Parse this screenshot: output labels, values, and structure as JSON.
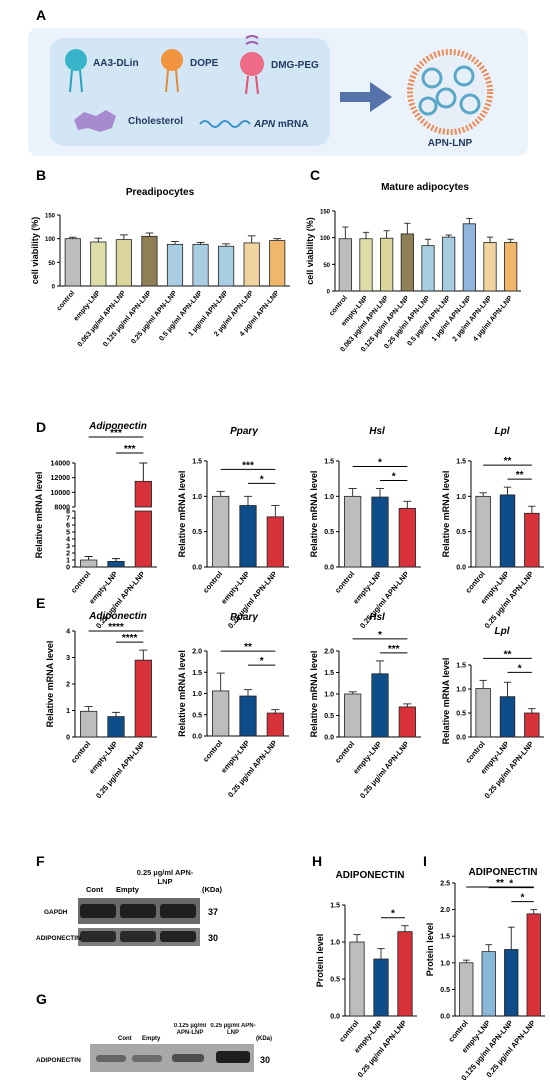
{
  "panel_letters": {
    "A": "A",
    "B": "B",
    "C": "C",
    "D": "D",
    "E": "E",
    "F": "F",
    "G": "G",
    "H": "H",
    "I": "I"
  },
  "schematic": {
    "lipids": [
      "AA3-DLin",
      "DOPE",
      "DMG-PEG",
      "Cholesterol"
    ],
    "mrna_italic": "APN",
    "mrna_rest": " mRNA",
    "product": "APN-LNP"
  },
  "colors": {
    "control": "#bdbdbd",
    "empty": "#dedca7",
    "empty_dark": "#0f4d8a",
    "apn": "#d7313a",
    "olive": "#8f7f55",
    "lightblue": "#a9cde3",
    "blue": "#89b7d7",
    "tan": "#e8c68e",
    "orange": "#f0a85a",
    "purple": "#9fb8dd"
  },
  "chart_data": [
    {
      "id": "B",
      "type": "bar",
      "title": "Preadipocytes",
      "ylabel": "cell viability (%)",
      "ylim": [
        0,
        150
      ],
      "yticks": [
        0,
        50,
        100,
        150
      ],
      "categories": [
        "control",
        "empty-LNP",
        "0.063 µg/ml APN-LNP",
        "0.125 µg/ml APN-LNP",
        "0.25 µg/ml APN-LNP",
        "0.5 µg/ml APN-LNP",
        "1 µg/ml APN-LNP",
        "2 µg/ml APN-LNP",
        "4 µg/ml APN-LNP"
      ],
      "values": [
        100,
        93,
        98,
        105,
        88,
        88,
        84,
        91,
        96
      ],
      "errors": [
        3,
        8,
        10,
        7,
        6,
        4,
        5,
        15,
        4
      ],
      "colors": [
        "#bdbdbd",
        "#dedca7",
        "#d9d59b",
        "#8f7f55",
        "#a9cde3",
        "#a9cde3",
        "#a9cde3",
        "#f1d39f",
        "#f0b66c"
      ]
    },
    {
      "id": "C",
      "type": "bar",
      "title": "Mature adipocytes",
      "ylabel": "cell viability (%)",
      "ylim": [
        0,
        150
      ],
      "yticks": [
        0,
        50,
        100,
        150
      ],
      "categories": [
        "control",
        "empty-LNP",
        "0.063 µg/ml APN-LNP",
        "0.125 µg/ml APN-LNP",
        "0.25 µg/ml APN-LNP",
        "0.5 µg/ml APN-LNP",
        "1 µg/ml APN-LNP",
        "2 µg/ml APN-LNP",
        "4 µg/ml APN-LNP"
      ],
      "values": [
        98,
        98,
        99,
        107,
        85,
        101,
        126,
        91,
        91
      ],
      "errors": [
        22,
        12,
        14,
        20,
        12,
        4,
        10,
        10,
        6
      ],
      "colors": [
        "#bdbdbd",
        "#dedca7",
        "#d9d59b",
        "#8f7f55",
        "#a9cde3",
        "#a9cde3",
        "#8fb7dd",
        "#f1d39f",
        "#f0b66c"
      ]
    },
    {
      "id": "D1",
      "type": "bar",
      "title": "Adiponectin",
      "ylabel": "Relative mRNA level",
      "broken_axis": true,
      "ylim_lower": [
        0,
        8
      ],
      "yticks_lower": [
        0,
        1,
        2,
        3,
        4,
        5,
        6,
        7,
        8
      ],
      "ylim_upper": [
        8000,
        14000
      ],
      "yticks_upper": [
        8000,
        10000,
        12000,
        14000
      ],
      "categories": [
        "control",
        "empty-LNP",
        "0.25 µg/ml APN-LNP"
      ],
      "values": [
        1.0,
        0.8,
        11500
      ],
      "errors": [
        0.5,
        0.4,
        2500
      ],
      "colors": [
        "#bdbdbd",
        "#0f4d8a",
        "#d7313a"
      ],
      "significance": [
        {
          "from": 0,
          "to": 2,
          "label": "***"
        },
        {
          "from": 1,
          "to": 2,
          "label": "***"
        }
      ]
    },
    {
      "id": "D2",
      "type": "bar",
      "title": "Pparγ",
      "ylabel": "Relative mRNA level",
      "ylim": [
        0,
        1.5
      ],
      "yticks": [
        0.0,
        0.5,
        1.0,
        1.5
      ],
      "categories": [
        "control",
        "empty-LNP",
        "0.25 µg/ml APN-LNP"
      ],
      "values": [
        1.0,
        0.87,
        0.71
      ],
      "errors": [
        0.07,
        0.13,
        0.16
      ],
      "colors": [
        "#bdbdbd",
        "#0f4d8a",
        "#d7313a"
      ],
      "significance": [
        {
          "from": 0,
          "to": 2,
          "label": "***"
        },
        {
          "from": 1,
          "to": 2,
          "label": "*"
        }
      ]
    },
    {
      "id": "D3",
      "type": "bar",
      "title": "Hsl",
      "ylabel": "Relative mRNA level",
      "ylim": [
        0,
        1.5
      ],
      "yticks": [
        0.0,
        0.5,
        1.0,
        1.5
      ],
      "categories": [
        "control",
        "empty-LNP",
        "0.25 µg/ml APN-LNP"
      ],
      "values": [
        1.0,
        0.99,
        0.83
      ],
      "errors": [
        0.11,
        0.12,
        0.1
      ],
      "colors": [
        "#bdbdbd",
        "#0f4d8a",
        "#d7313a"
      ],
      "significance": [
        {
          "from": 0,
          "to": 2,
          "label": "*"
        },
        {
          "from": 1,
          "to": 2,
          "label": "*"
        }
      ]
    },
    {
      "id": "D4",
      "type": "bar",
      "title": "Lpl",
      "ylabel": "Relative mRNA level",
      "ylim": [
        0,
        1.5
      ],
      "yticks": [
        0.0,
        0.5,
        1.0,
        1.5
      ],
      "categories": [
        "control",
        "empty-LNP",
        "0.25 µg/ml APN-LNP"
      ],
      "values": [
        1.0,
        1.02,
        0.76
      ],
      "errors": [
        0.05,
        0.11,
        0.1
      ],
      "colors": [
        "#bdbdbd",
        "#0f4d8a",
        "#d7313a"
      ],
      "significance": [
        {
          "from": 0,
          "to": 2,
          "label": "**"
        },
        {
          "from": 1,
          "to": 2,
          "label": "**"
        }
      ]
    },
    {
      "id": "E1",
      "type": "bar",
      "title": "Adiponectin",
      "ylabel": "Relative mRNA level",
      "ylim": [
        0,
        4
      ],
      "yticks": [
        0,
        1,
        2,
        3,
        4
      ],
      "categories": [
        "control",
        "empty-LNP",
        "0.25 µg/ml APN-LNP"
      ],
      "values": [
        0.97,
        0.77,
        2.9
      ],
      "errors": [
        0.18,
        0.16,
        0.38
      ],
      "colors": [
        "#bdbdbd",
        "#0f4d8a",
        "#d7313a"
      ],
      "significance": [
        {
          "from": 0,
          "to": 2,
          "label": "****"
        },
        {
          "from": 1,
          "to": 2,
          "label": "****"
        }
      ]
    },
    {
      "id": "E2",
      "type": "bar",
      "title": "Pparγ",
      "ylabel": "Relative mRNA level",
      "ylim": [
        0,
        2.0
      ],
      "yticks": [
        0.0,
        0.5,
        1.0,
        1.5,
        2.0
      ],
      "categories": [
        "control",
        "empty-LNP",
        "0.25 µg/ml APN-LNP"
      ],
      "values": [
        1.06,
        0.94,
        0.54
      ],
      "errors": [
        0.42,
        0.15,
        0.08
      ],
      "colors": [
        "#bdbdbd",
        "#0f4d8a",
        "#d7313a"
      ],
      "significance": [
        {
          "from": 0,
          "to": 2,
          "label": "**"
        },
        {
          "from": 1,
          "to": 2,
          "label": "*"
        }
      ]
    },
    {
      "id": "E3",
      "type": "bar",
      "title": "Hsl",
      "ylabel": "Relative mRNA level",
      "ylim": [
        0,
        2.0
      ],
      "yticks": [
        0.0,
        0.5,
        1.0,
        1.5,
        2.0
      ],
      "categories": [
        "control",
        "empty-LNP",
        "0.25 µg/ml APN-LNP"
      ],
      "values": [
        1.0,
        1.47,
        0.7
      ],
      "errors": [
        0.05,
        0.3,
        0.07
      ],
      "colors": [
        "#bdbdbd",
        "#0f4d8a",
        "#d7313a"
      ],
      "significance": [
        {
          "from": 0,
          "to": 2,
          "label": "*"
        },
        {
          "from": 1,
          "to": 2,
          "label": "***"
        }
      ]
    },
    {
      "id": "E4",
      "type": "bar",
      "title": "Lpl",
      "ylabel": "Relative mRNA level",
      "ylim": [
        0,
        1.5
      ],
      "yticks": [
        0.0,
        0.5,
        1.0,
        1.5
      ],
      "categories": [
        "control",
        "empty-LNP",
        "0.25 µg/ml APN-LNP"
      ],
      "values": [
        1.01,
        0.84,
        0.5
      ],
      "errors": [
        0.17,
        0.3,
        0.09
      ],
      "colors": [
        "#bdbdbd",
        "#0f4d8a",
        "#d7313a"
      ],
      "significance": [
        {
          "from": 0,
          "to": 2,
          "label": "**"
        },
        {
          "from": 1,
          "to": 2,
          "label": "*"
        }
      ]
    },
    {
      "id": "H",
      "type": "bar",
      "title": "ADIPONECTIN",
      "ylabel": "Protein level",
      "ylim": [
        0,
        1.5
      ],
      "yticks": [
        0.0,
        0.5,
        1.0,
        1.5
      ],
      "categories": [
        "control",
        "empty-LNP",
        "0.25 µg/ml APN-LNP"
      ],
      "values": [
        1.0,
        0.77,
        1.14
      ],
      "errors": [
        0.1,
        0.14,
        0.08
      ],
      "colors": [
        "#bdbdbd",
        "#0f4d8a",
        "#d7313a"
      ],
      "significance": [
        {
          "from": 1,
          "to": 2,
          "label": "*"
        }
      ]
    },
    {
      "id": "I",
      "type": "bar",
      "title": "ADIPONECTIN",
      "ylabel": "Protein level",
      "ylim": [
        0,
        2.5
      ],
      "yticks": [
        0.0,
        0.5,
        1.0,
        1.5,
        2.0,
        2.5
      ],
      "categories": [
        "control",
        "empty-LNP",
        "0.125 µg/ml APN-LNP",
        "0.25 µg/ml APN-LNP"
      ],
      "values": [
        1.0,
        1.21,
        1.25,
        1.92
      ],
      "errors": [
        0.05,
        0.13,
        0.42,
        0.08
      ],
      "colors": [
        "#bdbdbd",
        "#89b7d7",
        "#0f4d8a",
        "#d7313a"
      ],
      "significance": [
        {
          "from": 0,
          "to": 3,
          "label": "**"
        },
        {
          "from": 1,
          "to": 3,
          "label": "*"
        },
        {
          "from": 2,
          "to": 3,
          "label": "*"
        }
      ]
    }
  ],
  "blot_F": {
    "lanes": [
      "Cont",
      "Empty",
      "0.25 µg/ml APN-LNP"
    ],
    "kda": "(KDa)",
    "bands": [
      {
        "label": "GAPDH",
        "kda": "37"
      },
      {
        "label": "ADIPONECTIN",
        "kda": "30"
      }
    ]
  },
  "blot_G": {
    "lanes": [
      "Cont",
      "Empty",
      "0.125 µg/ml APN-LNP",
      "0.25 µg/ml APN-LNP"
    ],
    "kda": "(KDa)",
    "bands": [
      {
        "label": "ADIPONECTIN",
        "kda": "30"
      }
    ]
  }
}
